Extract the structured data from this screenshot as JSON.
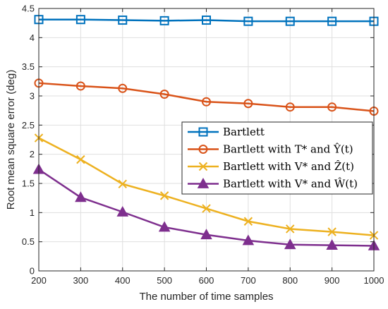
{
  "chart_data": {
    "type": "line",
    "xlabel": "The number of time samples",
    "ylabel": "Root mean square error (deg)",
    "xlim": [
      200,
      1000
    ],
    "ylim": [
      0,
      4.5
    ],
    "x": [
      200,
      300,
      400,
      500,
      600,
      700,
      800,
      900,
      1000
    ],
    "x_ticks": [
      "200",
      "300",
      "400",
      "500",
      "600",
      "700",
      "800",
      "900",
      "1000"
    ],
    "y_ticks": [
      "0",
      "0.5",
      "1",
      "1.5",
      "2",
      "2.5",
      "3",
      "3.5",
      "4",
      "4.5"
    ],
    "grid": true,
    "legend_position": "center-right",
    "series": [
      {
        "name": "Bartlett",
        "color": "#0072BD",
        "marker": "square",
        "values": [
          4.31,
          4.31,
          4.3,
          4.29,
          4.3,
          4.28,
          4.28,
          4.28,
          4.28
        ]
      },
      {
        "name": "Bartlett with T* and Ŷ(t)",
        "color": "#D95319",
        "marker": "circle",
        "values": [
          3.22,
          3.17,
          3.13,
          3.03,
          2.9,
          2.87,
          2.81,
          2.81,
          2.74
        ]
      },
      {
        "name": "Bartlett with V* and Ẑ(t)",
        "color": "#EDB120",
        "marker": "x",
        "values": [
          2.28,
          1.91,
          1.49,
          1.29,
          1.07,
          0.85,
          0.72,
          0.67,
          0.61
        ]
      },
      {
        "name": "Bartlett with V* and Ŵ(t)",
        "color": "#7E2F8E",
        "marker": "triangle",
        "values": [
          1.74,
          1.26,
          1.01,
          0.75,
          0.62,
          0.52,
          0.45,
          0.44,
          0.43
        ]
      }
    ]
  }
}
